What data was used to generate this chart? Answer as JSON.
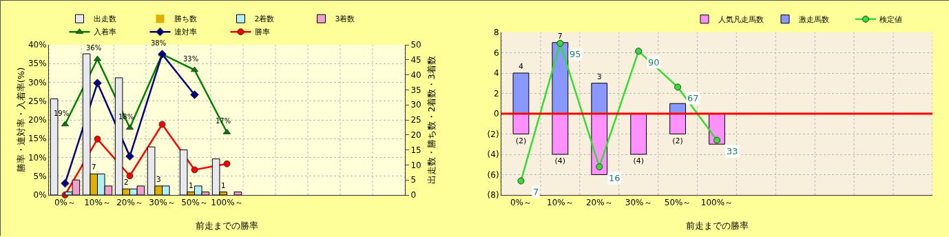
{
  "chart_data": [
    {
      "type": "bar",
      "categories": [
        "0%～",
        "10%～",
        "20%～",
        "30%～",
        "50%～",
        "100%～",
        null,
        null,
        null,
        null,
        null
      ],
      "xlabel": "前走までの勝率",
      "ylabel": "勝率・連対率・入着率(%)",
      "y2label": "出走数・勝ち数・2着数・3着数",
      "ylim": [
        0,
        40
      ],
      "yticks": [
        {
          "value": 0,
          "label": "0%"
        },
        {
          "value": 5,
          "label": "5%"
        },
        {
          "value": 10,
          "label": "10%"
        },
        {
          "value": 15,
          "label": "15%"
        },
        {
          "value": 20,
          "label": "20%"
        },
        {
          "value": 25,
          "label": "25%"
        },
        {
          "value": 30,
          "label": "30%"
        },
        {
          "value": 35,
          "label": "35%"
        },
        {
          "value": 40,
          "label": "40%"
        }
      ],
      "y2lim": [
        0,
        50
      ],
      "y2ticks": [
        0,
        5,
        10,
        15,
        20,
        25,
        30,
        35,
        40,
        45,
        50
      ],
      "grid": true,
      "legend": "top",
      "series": [
        {
          "name": "出走数",
          "axis": "y2",
          "color": "#e8e8f0",
          "values": [
            32,
            47,
            39,
            16,
            15,
            12,
            null,
            null,
            null,
            null,
            null
          ]
        },
        {
          "name": "勝ち数",
          "axis": "y2",
          "color": "#e0b000",
          "values": [
            0,
            7,
            2,
            3,
            1,
            1,
            null,
            null,
            null,
            null,
            null
          ],
          "value_labels": [
            null,
            "7",
            "2",
            "3",
            "1",
            "1",
            null,
            null,
            null,
            null,
            null
          ]
        },
        {
          "name": "2着数",
          "axis": "y2",
          "color": "#b0eef8",
          "values": [
            1,
            7,
            2,
            3,
            3,
            0,
            null,
            null,
            null,
            null,
            null
          ]
        },
        {
          "name": "3着数",
          "axis": "y2",
          "color": "#f0a0d0",
          "values": [
            5,
            3,
            3,
            0,
            1,
            1,
            null,
            null,
            null,
            null,
            null
          ]
        },
        {
          "name": "入着率",
          "type": "line",
          "marker": "triangle",
          "color": "#008000",
          "values": [
            18.8,
            36.2,
            17.9,
            37.5,
            33.3,
            16.7,
            null,
            null,
            null,
            null,
            null
          ],
          "value_labels": [
            "19%",
            "36%",
            "18%",
            "38%",
            "33%",
            "17%",
            null,
            null,
            null,
            null,
            null
          ]
        },
        {
          "name": "連対率",
          "type": "line",
          "marker": "diamond",
          "color": "#000080",
          "values": [
            3.1,
            29.8,
            10.3,
            37.5,
            26.7,
            null,
            null,
            null,
            null,
            null,
            null
          ]
        },
        {
          "name": "勝率",
          "type": "line",
          "marker": "circle",
          "color": "#ff0000",
          "values": [
            0,
            14.9,
            5.1,
            18.8,
            6.7,
            8.3,
            null,
            null,
            null,
            null,
            null
          ]
        }
      ]
    },
    {
      "type": "bar",
      "stacked": true,
      "categories": [
        "0%～",
        "10%～",
        "20%～",
        "30%～",
        "50%～",
        "100%～",
        null,
        null,
        null,
        null,
        null
      ],
      "xlabel": "前走までの勝率",
      "ylim": [
        -8,
        8
      ],
      "yticks": [
        {
          "value": -8,
          "label": "(8)"
        },
        {
          "value": -6,
          "label": "(6)"
        },
        {
          "value": -4,
          "label": "(4)"
        },
        {
          "value": -2,
          "label": "(2)"
        },
        0,
        2,
        4,
        6,
        8
      ],
      "y2lim": [
        -2,
        102
      ],
      "grid": true,
      "legend": "top right",
      "ref_lines": [
        {
          "axis": "y",
          "value": 0,
          "color": "#ff0000"
        }
      ],
      "series": [
        {
          "name": "人気凡走馬数",
          "color": "#ff90ff",
          "values": [
            -2,
            -4,
            -6,
            -4,
            -2,
            -3,
            null,
            null,
            null,
            null,
            null
          ],
          "value_labels": [
            "(2)",
            "(4)",
            null,
            "(4)",
            "(2)",
            null,
            null,
            null,
            null,
            null,
            null
          ]
        },
        {
          "name": "激走馬数",
          "color": "#8898ff",
          "values": [
            4,
            7,
            3,
            0,
            1,
            0,
            null,
            null,
            null,
            null,
            null
          ],
          "value_labels": [
            "4",
            "7",
            "3",
            null,
            null,
            null,
            null,
            null,
            null,
            null,
            null
          ]
        },
        {
          "name": "検定値",
          "type": "line",
          "axis": "y2",
          "marker": "circle",
          "color": "#33dd33",
          "values": [
            7,
            95,
            16,
            90,
            67,
            33,
            null,
            null,
            null,
            null,
            null
          ],
          "value_labels": [
            "7",
            "95",
            "16",
            "90",
            "67",
            "33",
            null,
            null,
            null,
            null,
            null
          ]
        }
      ]
    }
  ]
}
